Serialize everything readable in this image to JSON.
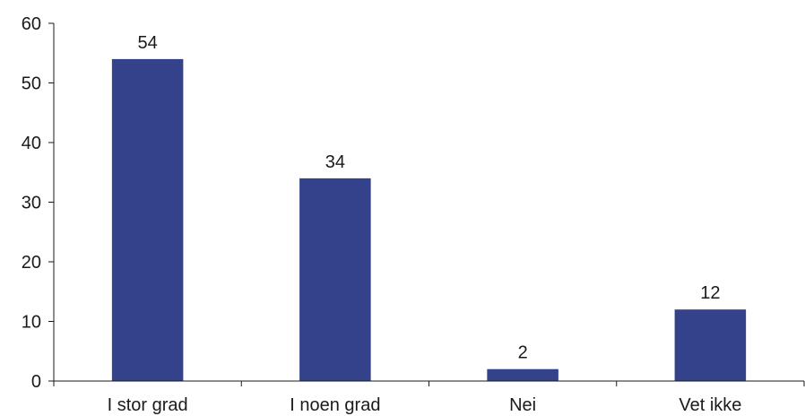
{
  "colors": {
    "bar": "#33428a",
    "axis": "#1a1a1a",
    "background": "#ffffff"
  },
  "chart_data": {
    "type": "bar",
    "title": "",
    "xlabel": "",
    "ylabel": "",
    "categories": [
      "I stor grad",
      "I noen grad",
      "Nei",
      "Vet ikke"
    ],
    "values": [
      54,
      34,
      2,
      12
    ],
    "data_labels": [
      "54",
      "34",
      "2",
      "12"
    ],
    "ylim": [
      0,
      60
    ],
    "yticks": [
      0,
      10,
      20,
      30,
      40,
      50,
      60
    ],
    "grid": false,
    "legend": "none"
  }
}
